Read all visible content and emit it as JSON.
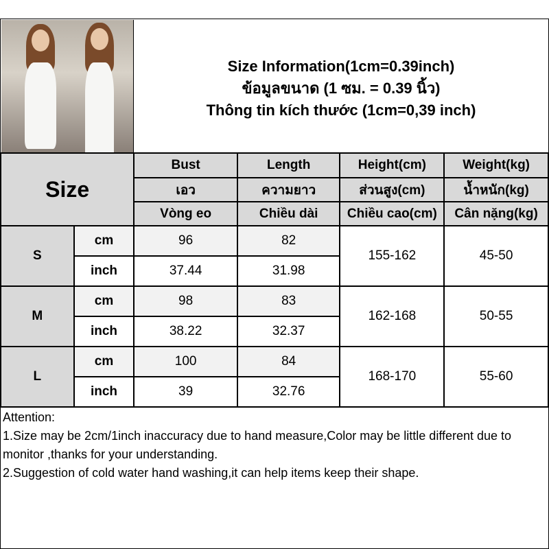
{
  "title_lines": [
    "Size Information(1cm=0.39inch)",
    "ข้อมูลขนาด (1 ซม. = 0.39 นิ้ว)",
    "Thông tin kích thước (1cm=0,39 inch)"
  ],
  "size_label": "Size",
  "columns": [
    {
      "en": "Bust",
      "th": "เอว",
      "vi": "Vòng eo"
    },
    {
      "en": "Length",
      "th": "ความยาว",
      "vi": "Chiều dài"
    },
    {
      "en": "Height(cm)",
      "th": "ส่วนสูง(cm)",
      "vi": "Chiều cao(cm)"
    },
    {
      "en": "Weight(kg)",
      "th": "น้ำหนัก(kg)",
      "vi": "Cân nặng(kg)"
    }
  ],
  "units": {
    "cm": "cm",
    "inch": "inch"
  },
  "rows": [
    {
      "size": "S",
      "bust_cm": "96",
      "length_cm": "82",
      "bust_in": "37.44",
      "length_in": "31.98",
      "height": "155-162",
      "weight": "45-50"
    },
    {
      "size": "M",
      "bust_cm": "98",
      "length_cm": "83",
      "bust_in": "38.22",
      "length_in": "32.37",
      "height": "162-168",
      "weight": "50-55"
    },
    {
      "size": "L",
      "bust_cm": "100",
      "length_cm": "84",
      "bust_in": "39",
      "length_in": "32.76",
      "height": "168-170",
      "weight": "55-60"
    }
  ],
  "attention": {
    "heading": "Attention:",
    "note1": "1.Size may be 2cm/1inch inaccuracy due to hand measure,Color may be little different due to monitor ,thanks for your understanding.",
    "note2": "2.Suggestion of cold water hand washing,it can help items keep their shape."
  }
}
